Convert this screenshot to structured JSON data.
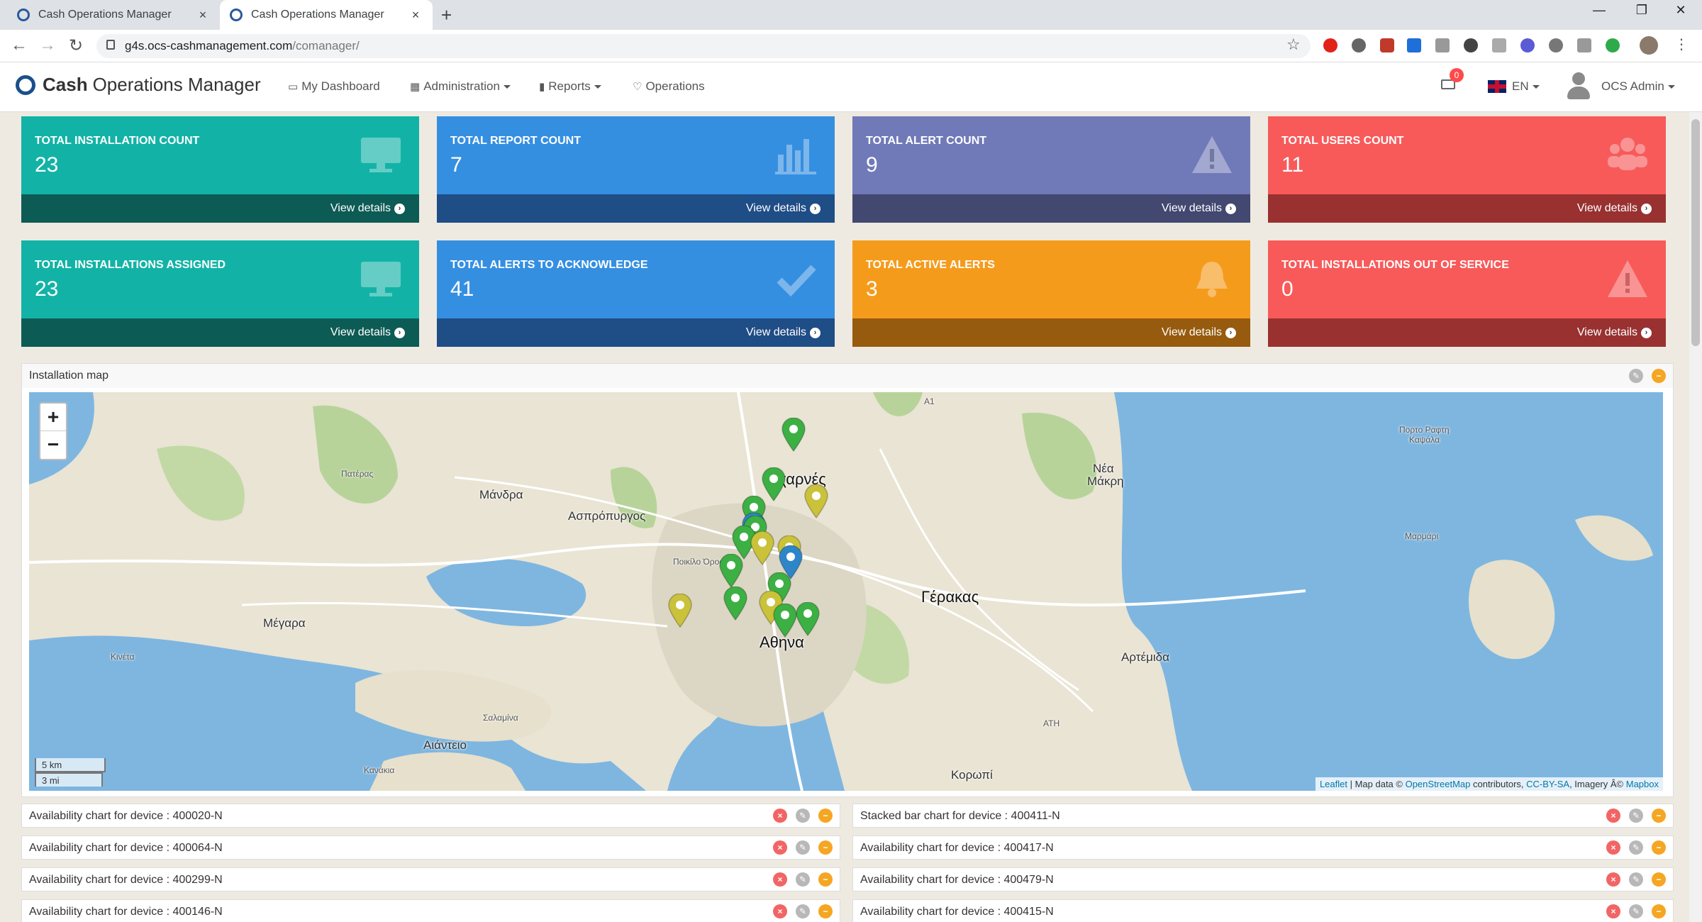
{
  "browser": {
    "tabs": [
      {
        "title": "Cash Operations Manager",
        "close": "×"
      },
      {
        "title": "Cash Operations Manager",
        "close": "×"
      }
    ],
    "new_tab": "+",
    "window_controls": [
      "—",
      "❐",
      "✕"
    ],
    "nav": {
      "back": "←",
      "forward": "→",
      "reload": "↻"
    },
    "url_host": "g4s.ocs-cashmanagement.com",
    "url_path": "/comanager/",
    "star": "☆"
  },
  "app": {
    "brand_bold": "Cash",
    "brand_rest": "Operations Manager",
    "nav": [
      {
        "label": "My Dashboard",
        "icon": "laptop-icon",
        "glyph": "▭",
        "dropdown": false
      },
      {
        "label": "Administration",
        "icon": "grid-icon",
        "glyph": "▦",
        "dropdown": true
      },
      {
        "label": "Reports",
        "icon": "bar-chart-icon",
        "glyph": "▮",
        "dropdown": true
      },
      {
        "label": "Operations",
        "icon": "heart-icon",
        "glyph": "♡",
        "dropdown": false
      }
    ],
    "mail_count": "0",
    "language": "EN",
    "user": "OCS Admin"
  },
  "cards": [
    {
      "title": "TOTAL INSTALLATION COUNT",
      "value": "23",
      "link": "View details",
      "color": "teal",
      "icon": "monitor-icon"
    },
    {
      "title": "TOTAL REPORT COUNT",
      "value": "7",
      "link": "View details",
      "color": "blue",
      "icon": "bar-chart-icon"
    },
    {
      "title": "TOTAL ALERT COUNT",
      "value": "9",
      "link": "View details",
      "color": "purple",
      "icon": "warning-icon"
    },
    {
      "title": "TOTAL USERS COUNT",
      "value": "11",
      "link": "View details",
      "color": "red",
      "icon": "users-icon"
    },
    {
      "title": "TOTAL INSTALLATIONS ASSIGNED",
      "value": "23",
      "link": "View details",
      "color": "teal",
      "icon": "monitor-icon"
    },
    {
      "title": "TOTAL ALERTS TO ACKNOWLEDGE",
      "value": "41",
      "link": "View details",
      "color": "blue",
      "icon": "check-icon"
    },
    {
      "title": "TOTAL ACTIVE ALERTS",
      "value": "3",
      "link": "View details",
      "color": "orange",
      "icon": "bell-icon"
    },
    {
      "title": "TOTAL INSTALLATIONS OUT OF SERVICE",
      "value": "0",
      "link": "View details",
      "color": "red",
      "icon": "warning-icon"
    }
  ],
  "map_panel": {
    "title": "Installation map",
    "zoom_in": "+",
    "zoom_out": "−",
    "scale_km": "5 km",
    "scale_mi": "3 mi",
    "attribution": {
      "leaflet": "Leaflet",
      "map_data": " | Map data © ",
      "osm": "OpenStreetMap",
      "contributors": " contributors, ",
      "license": "CC-BY-SA",
      "imagery": ", Imagery Â© ",
      "mapbox": "Mapbox"
    },
    "places": {
      "acharnes": "Αχαρνές",
      "athina": "Αθηνα",
      "gerakas": "Γέρακας",
      "mandra": "Μάνδρα",
      "aspropyrgos": "Ασπρόπυργος",
      "megara": "Μέγαρα",
      "artemida": "Αρτέμιδα",
      "aianteio": "Αιάντειο",
      "nea_makri_1": "Νέα",
      "nea_makri_2": "Μάκρη",
      "korwpi": "Κορωπί",
      "kineta": "Κινέτα",
      "pateras": "Πατέρας",
      "poikilo_oros": "Ποικίλο Όρος",
      "salamina": "Σαλαμίνα",
      "kanakia": "Κανάκια",
      "marmari": "Μαρμάρι",
      "ath": "ATH",
      "a1": "A1",
      "porto_rafti_1": "Πορτο Ραφτη",
      "porto_rafti_2": "Καψάλα"
    },
    "markers": [
      {
        "color": "green"
      },
      {
        "color": "green"
      },
      {
        "color": "yellow"
      },
      {
        "color": "green"
      },
      {
        "color": "blue"
      },
      {
        "color": "green"
      },
      {
        "color": "green"
      },
      {
        "color": "yellow"
      },
      {
        "color": "yellow"
      },
      {
        "color": "blue"
      },
      {
        "color": "green"
      },
      {
        "color": "green"
      },
      {
        "color": "green"
      },
      {
        "color": "yellow"
      },
      {
        "color": "yellow"
      },
      {
        "color": "green"
      },
      {
        "color": "green"
      }
    ]
  },
  "chart_rows": {
    "left": [
      "Availability chart for device : 400020-N",
      "Availability chart for device : 400064-N",
      "Availability chart for device : 400299-N",
      "Availability chart for device : 400146-N"
    ],
    "right": [
      "Stacked bar chart for device : 400411-N",
      "Availability chart for device : 400417-N",
      "Availability chart for device : 400479-N",
      "Availability chart for device : 400415-N"
    ]
  },
  "colors": {
    "teal": "#12b3a6",
    "blue": "#358fe1",
    "purple": "#717ab8",
    "red": "#f85a5a",
    "orange": "#f59b1c",
    "marker_green": "#3cb043",
    "marker_yellow": "#c9c23a",
    "marker_blue": "#2e86c8"
  }
}
